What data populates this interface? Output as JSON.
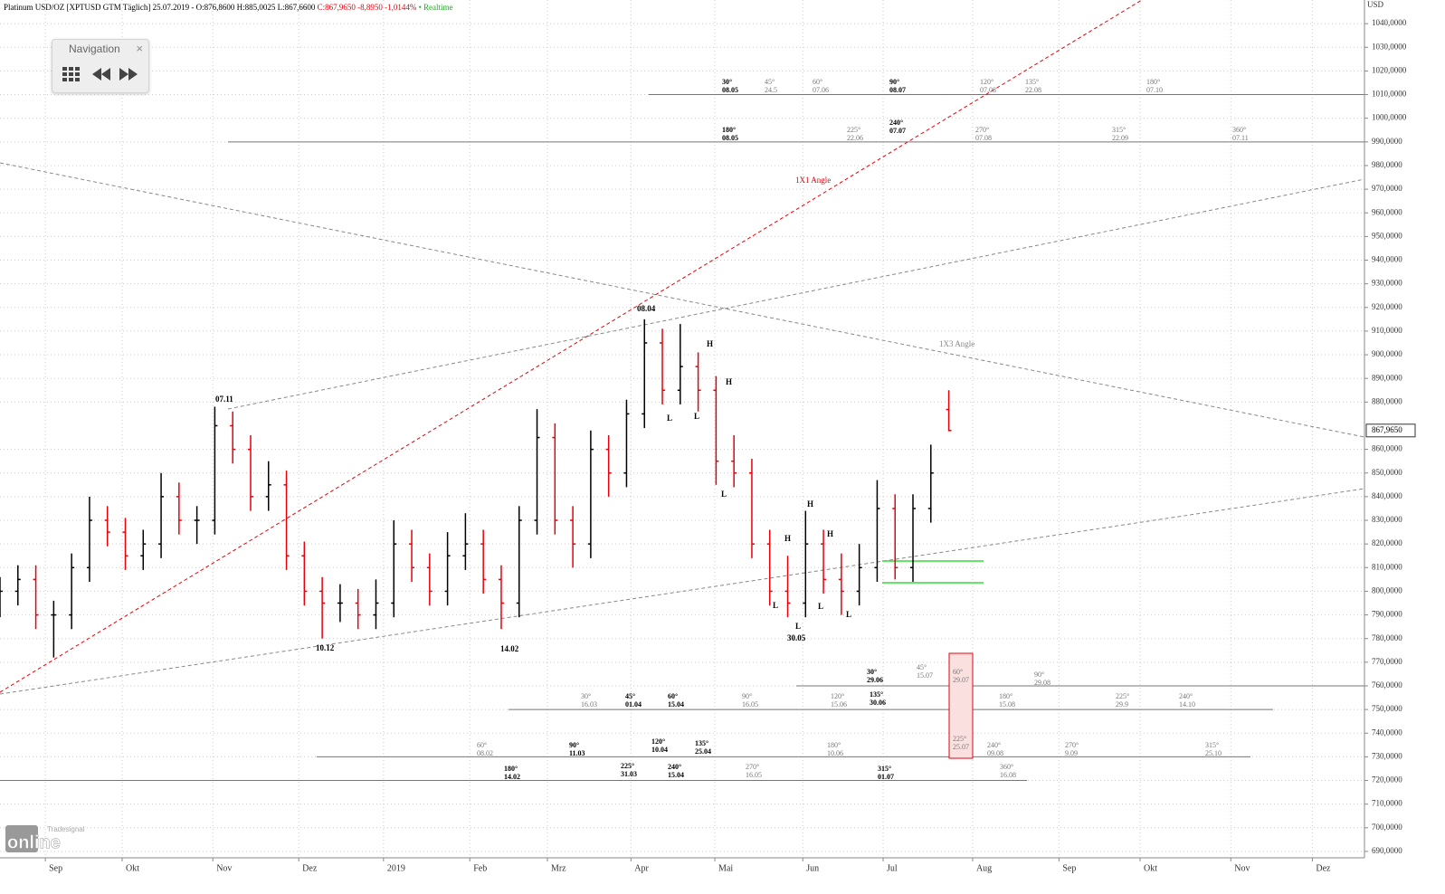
{
  "header": {
    "instrument": "Platinum USD/OZ [XPTUSD GTM Täglich] 25.07.2019 - O:876,8600 H:885,0025 L:867,6600",
    "change": "C:867,9650 -8,8950 -1,0144%",
    "status": "• Realtime"
  },
  "navigation": {
    "title": "Navigation",
    "close": "×"
  },
  "watermark": {
    "brand": "Tradesignal",
    "product": "online"
  },
  "chart_data": {
    "type": "ohlc",
    "currency": "USD",
    "last_label": "867,9650",
    "up_color": "#000000",
    "down_color": "#e8000b",
    "grid": true,
    "xlim": [
      0,
      343
    ],
    "ylim": [
      687.3,
      1050
    ],
    "xticks": [
      {
        "value": 11.4,
        "label": "Sep"
      },
      {
        "value": 30.7,
        "label": "Okt"
      },
      {
        "value": 53.5,
        "label": "Nov"
      },
      {
        "value": 75.1,
        "label": "Dez"
      },
      {
        "value": 96.4,
        "label": "2019"
      },
      {
        "value": 118.1,
        "label": "Feb"
      },
      {
        "value": 137.6,
        "label": "Mrz"
      },
      {
        "value": 158.6,
        "label": "Apr"
      },
      {
        "value": 179.7,
        "label": "Mai"
      },
      {
        "value": 201.8,
        "label": "Jun"
      },
      {
        "value": 222.0,
        "label": "Jul"
      },
      {
        "value": 244.5,
        "label": "Aug"
      },
      {
        "value": 266.2,
        "label": "Sep"
      },
      {
        "value": 286.6,
        "label": "Okt"
      },
      {
        "value": 309.4,
        "label": "Nov"
      },
      {
        "value": 329.9,
        "label": "Dez"
      }
    ],
    "yticks": [
      {
        "value": 690,
        "label": "690,0000"
      },
      {
        "value": 700,
        "label": "700,0000"
      },
      {
        "value": 710,
        "label": "710,0000"
      },
      {
        "value": 720,
        "label": "720,0000"
      },
      {
        "value": 730,
        "label": "730,0000"
      },
      {
        "value": 740,
        "label": "740,0000"
      },
      {
        "value": 750,
        "label": "750,0000"
      },
      {
        "value": 760,
        "label": "760,0000"
      },
      {
        "value": 770,
        "label": "770,0000"
      },
      {
        "value": 780,
        "label": "780,0000"
      },
      {
        "value": 790,
        "label": "790,0000"
      },
      {
        "value": 800,
        "label": "800,0000"
      },
      {
        "value": 810,
        "label": "810,0000"
      },
      {
        "value": 820,
        "label": "820,0000"
      },
      {
        "value": 830,
        "label": "830,0000"
      },
      {
        "value": 840,
        "label": "840,0000"
      },
      {
        "value": 850,
        "label": "850,0000"
      },
      {
        "value": 860,
        "label": "860,0000"
      },
      {
        "value": 880,
        "label": "880,0000"
      },
      {
        "value": 890,
        "label": "890,0000"
      },
      {
        "value": 900,
        "label": "900,0000"
      },
      {
        "value": 910,
        "label": "910,0000"
      },
      {
        "value": 920,
        "label": "920,0000"
      },
      {
        "value": 930,
        "label": "930,0000"
      },
      {
        "value": 940,
        "label": "940,0000"
      },
      {
        "value": 950,
        "label": "950,0000"
      },
      {
        "value": 960,
        "label": "960,0000"
      },
      {
        "value": 970,
        "label": "970,0000"
      },
      {
        "value": 980,
        "label": "980,0000"
      },
      {
        "value": 990,
        "label": "990,0000"
      },
      {
        "value": 1000,
        "label": "1000,0000"
      },
      {
        "value": 1010,
        "label": "1010,0000"
      },
      {
        "value": 1020,
        "label": "1020,0000"
      },
      {
        "value": 1030,
        "label": "1030,0000"
      },
      {
        "value": 1040,
        "label": "1040,0000"
      }
    ],
    "x": [
      0,
      4.5,
      9,
      13.5,
      18,
      22.5,
      27,
      31.5,
      36,
      40.5,
      45,
      49.5,
      54,
      58.5,
      63,
      67.5,
      72,
      76.5,
      81,
      85.5,
      90,
      94.5,
      99,
      103.5,
      108,
      112.5,
      117,
      121.5,
      126,
      130.5,
      135,
      139.5,
      144,
      148.5,
      153,
      157.5,
      162,
      166.5,
      171,
      175.5,
      180,
      184.5,
      189,
      193.5,
      198,
      202.5,
      207,
      211.5,
      216,
      220.5,
      225,
      229.5,
      234,
      238.5
    ],
    "open": [
      795,
      800,
      805,
      790,
      790,
      810,
      830,
      825,
      815,
      820,
      840,
      830,
      830,
      870,
      860,
      840,
      845,
      815,
      800,
      795,
      795,
      790,
      795,
      820,
      810,
      800,
      815,
      820,
      805,
      795,
      830,
      865,
      830,
      820,
      860,
      850,
      875,
      905,
      885,
      895,
      885,
      855,
      850,
      820,
      800,
      795,
      820,
      805,
      800,
      810,
      835,
      810,
      835,
      876.86
    ],
    "high": [
      806,
      811,
      811,
      796,
      816,
      840,
      836,
      831,
      826,
      850,
      846,
      836,
      878,
      876,
      866,
      855,
      851,
      821,
      806,
      803,
      801,
      805,
      830,
      826,
      816,
      825,
      833,
      826,
      811,
      836,
      877,
      871,
      836,
      868,
      866,
      881,
      915,
      911,
      913,
      901,
      891,
      866,
      856,
      826,
      815,
      834,
      826,
      816,
      820,
      847,
      841,
      841,
      862,
      885.0025
    ],
    "low": [
      789,
      794,
      784,
      772,
      784,
      804,
      819,
      809,
      809,
      814,
      824,
      820,
      824,
      854,
      834,
      834,
      809,
      794,
      780,
      787,
      784,
      784,
      789,
      804,
      794,
      794,
      809,
      799,
      784,
      789,
      824,
      824,
      810,
      814,
      840,
      844,
      869,
      879,
      879,
      876,
      845,
      844,
      814,
      794,
      789,
      789,
      799,
      790,
      794,
      804,
      805,
      804,
      829,
      867.66
    ],
    "close": [
      800,
      805,
      790,
      790,
      810,
      830,
      825,
      815,
      820,
      840,
      830,
      830,
      870,
      860,
      840,
      845,
      815,
      800,
      795,
      795,
      790,
      795,
      820,
      810,
      800,
      815,
      820,
      805,
      795,
      830,
      865,
      830,
      820,
      860,
      850,
      875,
      905,
      885,
      895,
      885,
      855,
      850,
      820,
      800,
      795,
      820,
      805,
      800,
      810,
      835,
      810,
      835,
      850,
      867.965
    ],
    "levels": [
      1010,
      990,
      760,
      750,
      730,
      720
    ],
    "angle_labels": [
      "1X1 Angle",
      "1X3 Angle"
    ],
    "pivot_labels": [
      "07.11",
      "10.12",
      "14.02",
      "08.04",
      "30.05"
    ],
    "hl_labels": [
      "H",
      "H",
      "H",
      "H",
      "H",
      "L",
      "L",
      "L",
      "L",
      "L",
      "L",
      "L"
    ],
    "gann_labels": [
      {
        "angle": "30°",
        "date": "08.05"
      },
      {
        "angle": "45°",
        "date": "24.5"
      },
      {
        "angle": "60°",
        "date": "07.06"
      },
      {
        "angle": "90°",
        "date": "08.07"
      },
      {
        "angle": "120°",
        "date": "07.08"
      },
      {
        "angle": "135°",
        "date": "22.08"
      },
      {
        "angle": "180°",
        "date": "07.10"
      },
      {
        "angle": "180°",
        "date": "08.05"
      },
      {
        "angle": "225°",
        "date": "22.06"
      },
      {
        "angle": "240°",
        "date": "07.07"
      },
      {
        "angle": "270°",
        "date": "07.08"
      },
      {
        "angle": "315°",
        "date": "22.09"
      },
      {
        "angle": "360°",
        "date": "07.11"
      },
      {
        "angle": "30°",
        "date": "29.06"
      },
      {
        "angle": "45°",
        "date": "15.07"
      },
      {
        "angle": "60°",
        "date": "29.07"
      },
      {
        "angle": "90°",
        "date": "29.08"
      },
      {
        "angle": "30°",
        "date": "16.03"
      },
      {
        "angle": "45°",
        "date": "01.04"
      },
      {
        "angle": "60°",
        "date": "15.04"
      },
      {
        "angle": "90°",
        "date": "16.05"
      },
      {
        "angle": "120°",
        "date": "15.06"
      },
      {
        "angle": "135°",
        "date": "30.06"
      },
      {
        "angle": "180°",
        "date": "15.08"
      },
      {
        "angle": "225°",
        "date": "29.9"
      },
      {
        "angle": "240°",
        "date": "14.10"
      },
      {
        "angle": "60°",
        "date": "08.02"
      },
      {
        "angle": "90°",
        "date": "11.03"
      },
      {
        "angle": "120°",
        "date": "10.04"
      },
      {
        "angle": "135°",
        "date": "25.04"
      },
      {
        "angle": "180°",
        "date": "10.06"
      },
      {
        "angle": "225°",
        "date": "25.07"
      },
      {
        "angle": "240°",
        "date": "09.08"
      },
      {
        "angle": "270°",
        "date": "9.09"
      },
      {
        "angle": "315°",
        "date": "25.10"
      },
      {
        "angle": "180°",
        "date": "14.02"
      },
      {
        "angle": "225°",
        "date": "31.03"
      },
      {
        "angle": "240°",
        "date": "15.04"
      },
      {
        "angle": "270°",
        "date": "16.05"
      },
      {
        "angle": "315°",
        "date": "01.07"
      },
      {
        "angle": "360°",
        "date": "16.08"
      }
    ]
  }
}
